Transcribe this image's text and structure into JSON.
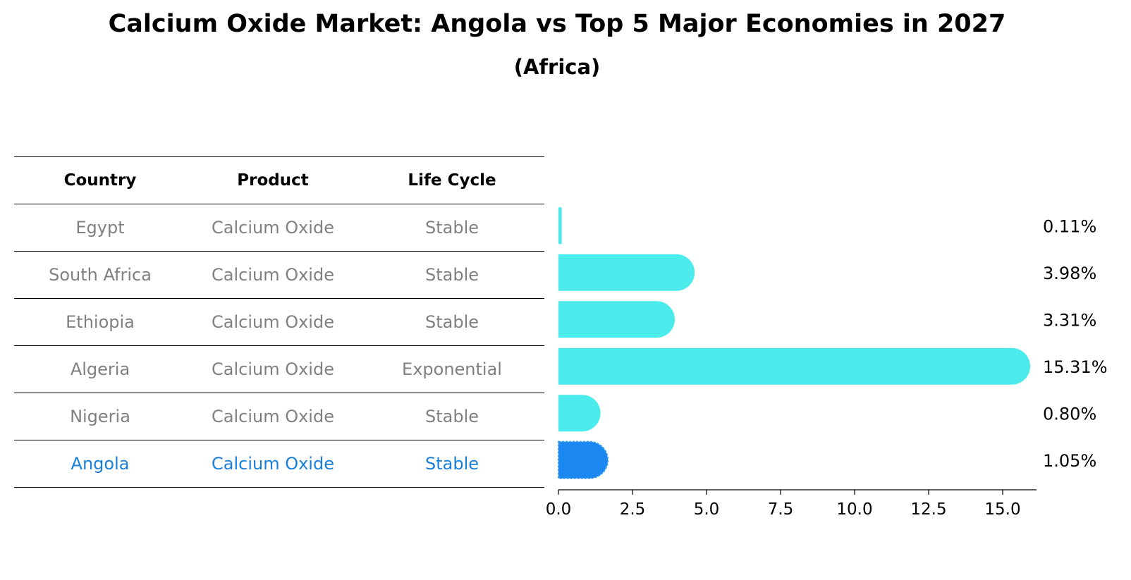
{
  "chart_data": {
    "type": "bar",
    "orientation": "horizontal",
    "title": "Calcium Oxide Market: Angola vs Top 5 Major Economies in 2027",
    "subtitle": "(Africa)",
    "categories": [
      "Egypt",
      "South Africa",
      "Ethiopia",
      "Algeria",
      "Nigeria",
      "Angola"
    ],
    "values": [
      0.11,
      3.98,
      3.31,
      15.31,
      0.8,
      1.05
    ],
    "value_labels": [
      "0.11%",
      "3.98%",
      "3.31%",
      "15.31%",
      "0.80%",
      "1.05%"
    ],
    "highlight": "Angola",
    "colors": {
      "bar": "#4cebeb",
      "highlight_bar": "#1a88f0",
      "highlight_text": "#1a7fd8",
      "text": "#808080"
    },
    "xlim": [
      0,
      16.2
    ],
    "xticks": [
      0.0,
      2.5,
      5.0,
      7.5,
      10.0,
      12.5,
      15.0
    ],
    "xtick_labels": [
      "0.0",
      "2.5",
      "5.0",
      "7.5",
      "10.0",
      "12.5",
      "15.0"
    ],
    "grid": false,
    "table": {
      "columns": [
        "Country",
        "Product",
        "Life Cycle"
      ],
      "rows": [
        [
          "Egypt",
          "Calcium Oxide",
          "Stable"
        ],
        [
          "South Africa",
          "Calcium Oxide",
          "Stable"
        ],
        [
          "Ethiopia",
          "Calcium Oxide",
          "Stable"
        ],
        [
          "Algeria",
          "Calcium Oxide",
          "Exponential"
        ],
        [
          "Nigeria",
          "Calcium Oxide",
          "Stable"
        ],
        [
          "Angola",
          "Calcium Oxide",
          "Stable"
        ]
      ]
    }
  }
}
